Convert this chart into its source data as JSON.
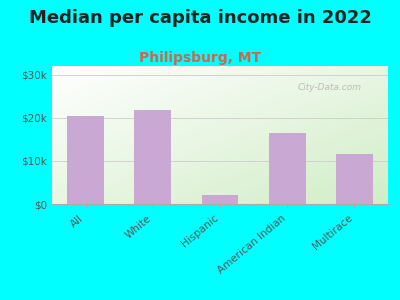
{
  "title": "Median per capita income in 2022",
  "subtitle": "Philipsburg, MT",
  "categories": [
    "All",
    "White",
    "Hispanic",
    "American Indian",
    "Multirace"
  ],
  "values": [
    20500,
    21800,
    2200,
    16500,
    11500
  ],
  "bar_color": "#c9a8d4",
  "title_fontsize": 13,
  "subtitle_fontsize": 10,
  "subtitle_color": "#cc6655",
  "background_color": "#00ffff",
  "ylim": [
    0,
    32000
  ],
  "yticks": [
    0,
    10000,
    20000,
    30000
  ],
  "ytick_labels": [
    "$0",
    "$10k",
    "$20k",
    "$30k"
  ],
  "watermark": "City-Data.com"
}
